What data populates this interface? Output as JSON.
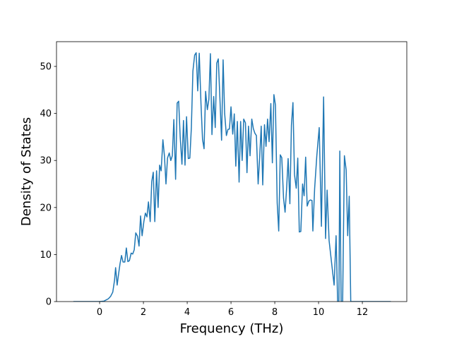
{
  "chart_data": {
    "type": "line",
    "x_label": "Frequency (THz)",
    "y_label": "Density of States",
    "xlim": [
      -1.97,
      14.03
    ],
    "ylim": [
      0,
      55.26
    ],
    "xticks": [
      0,
      2,
      4,
      6,
      8,
      10,
      12
    ],
    "yticks": [
      0,
      10,
      20,
      30,
      40,
      50
    ],
    "x": [
      -1.2,
      0,
      0.2,
      0.4,
      0.5,
      0.6,
      0.68,
      0.73,
      0.8,
      0.87,
      0.93,
      1.0,
      1.07,
      1.15,
      1.22,
      1.29,
      1.36,
      1.44,
      1.51,
      1.58,
      1.65,
      1.73,
      1.8,
      1.87,
      1.94,
      2.02,
      2.09,
      2.16,
      2.23,
      2.31,
      2.38,
      2.45,
      2.52,
      2.6,
      2.67,
      2.74,
      2.81,
      2.89,
      2.96,
      3.03,
      3.1,
      3.18,
      3.25,
      3.32,
      3.39,
      3.47,
      3.54,
      3.61,
      3.68,
      3.76,
      3.83,
      3.9,
      3.97,
      4.05,
      4.12,
      4.19,
      4.26,
      4.34,
      4.41,
      4.48,
      4.55,
      4.63,
      4.7,
      4.77,
      4.84,
      4.92,
      4.99,
      5.06,
      5.13,
      5.21,
      5.28,
      5.35,
      5.42,
      5.5,
      5.57,
      5.64,
      5.71,
      5.79,
      5.86,
      5.93,
      6.0,
      6.08,
      6.15,
      6.22,
      6.29,
      6.37,
      6.44,
      6.51,
      6.58,
      6.66,
      6.73,
      6.8,
      6.87,
      6.95,
      7.02,
      7.09,
      7.16,
      7.24,
      7.31,
      7.38,
      7.45,
      7.53,
      7.6,
      7.67,
      7.74,
      7.82,
      7.89,
      7.96,
      8.03,
      8.11,
      8.18,
      8.25,
      8.32,
      8.4,
      8.47,
      8.54,
      8.61,
      8.69,
      8.76,
      8.83,
      8.9,
      8.98,
      9.05,
      9.12,
      9.19,
      9.27,
      9.34,
      9.41,
      9.48,
      9.56,
      9.63,
      9.7,
      9.74,
      9.82,
      9.92,
      10.03,
      10.13,
      10.23,
      10.32,
      10.39,
      10.48,
      10.6,
      10.71,
      10.8,
      10.87,
      10.93,
      10.97,
      11.03,
      11.1,
      11.18,
      11.26,
      11.33,
      11.4,
      11.47,
      13.3
    ],
    "series": [
      {
        "color": "#1f77b4",
        "values": [
          0,
          0,
          0.1,
          0.6,
          1.1,
          2,
          4.5,
          7.2,
          3.5,
          6,
          8,
          9.8,
          8.4,
          8.4,
          11.4,
          8.5,
          8.7,
          10.3,
          10.1,
          11,
          14.6,
          13.9,
          11.8,
          18.2,
          14,
          17,
          18.8,
          18,
          21.2,
          17,
          25.5,
          27.5,
          17,
          27.8,
          20,
          29,
          27.8,
          34.4,
          31,
          25,
          30.5,
          31.6,
          30,
          31,
          38.7,
          26,
          42.2,
          42.6,
          35,
          29.2,
          38.5,
          29,
          39.3,
          30.4,
          30.5,
          37,
          49,
          52.4,
          52.9,
          44.8,
          52.8,
          42,
          34.5,
          32.5,
          44.7,
          40.8,
          43,
          52.7,
          35.5,
          43.6,
          37,
          50.7,
          51.6,
          42.5,
          34.3,
          51.4,
          40,
          35.3,
          36.6,
          36.7,
          41.4,
          35.6,
          39.9,
          28.8,
          38.3,
          25.4,
          38.3,
          30,
          38.8,
          38,
          27.4,
          37.3,
          31,
          38.8,
          36.8,
          35.8,
          35.3,
          25,
          30.7,
          37.3,
          24.8,
          37.6,
          33,
          38.8,
          34,
          42.1,
          29.5,
          44,
          41.8,
          21,
          15,
          31.2,
          30.6,
          22,
          19,
          24,
          30.4,
          20.8,
          37.5,
          42.3,
          27,
          24.1,
          30.5,
          14.8,
          14.9,
          25,
          22.5,
          30.7,
          20.3,
          21.4,
          21.6,
          21.5,
          15,
          24,
          31,
          37,
          16,
          43.5,
          13.4,
          23.7,
          13,
          8,
          3.5,
          14,
          0,
          0,
          32,
          0,
          0,
          31,
          28,
          14,
          22.4,
          0,
          0
        ]
      }
    ]
  }
}
